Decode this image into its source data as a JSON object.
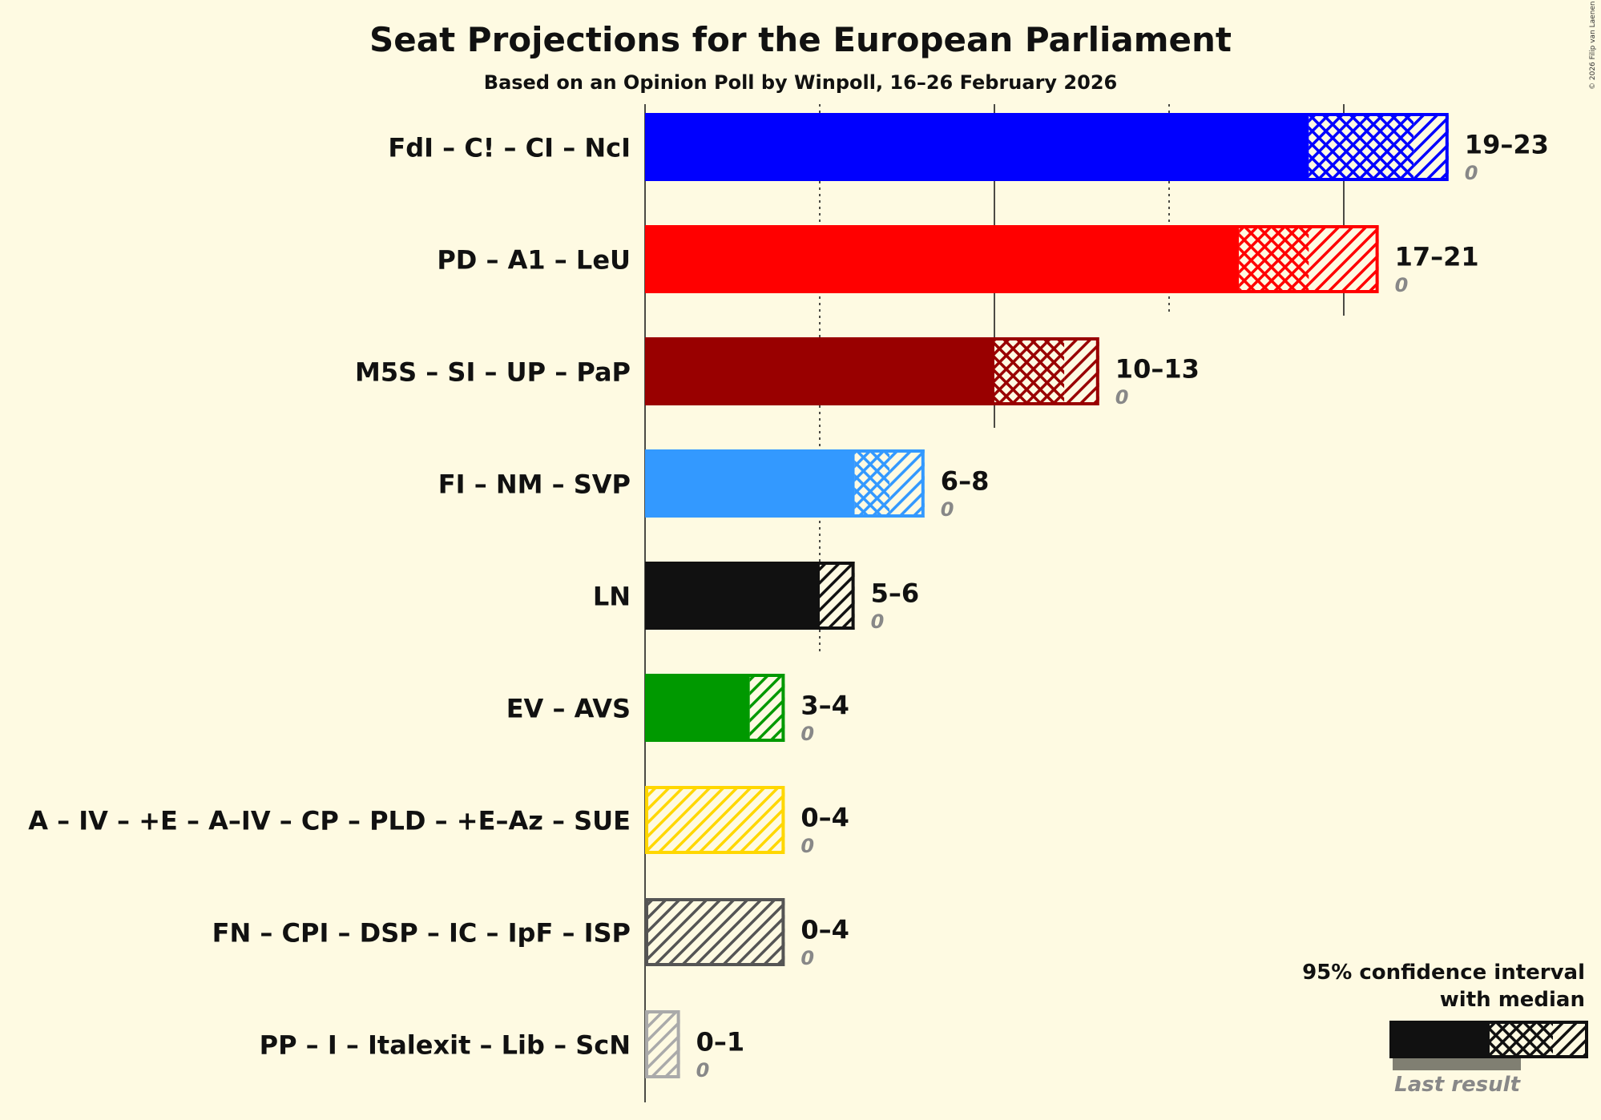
{
  "copyright": "© 2026 Filip van Laenen",
  "chart_data": {
    "type": "bar",
    "title": "Seat Projections for the European Parliament",
    "subtitle": "Based on an Opinion Poll by Winpoll, 16–26 February 2026",
    "xlabel": "",
    "ylabel": "",
    "xlim": [
      0,
      23
    ],
    "gridlines": {
      "solid": [
        0,
        10,
        20
      ],
      "dotted": [
        5,
        15
      ]
    },
    "legend": {
      "position": "bottom-right",
      "line1": "95% confidence interval",
      "line2": "with median",
      "last_result_label": "Last result"
    },
    "series": [
      {
        "name": "FdI – C! – CI – NcI",
        "low": 19,
        "median": 22,
        "high": 23,
        "range_label": "19–23",
        "last_result": "0",
        "color": "#0000FF"
      },
      {
        "name": "PD – A1 – LeU",
        "low": 17,
        "median": 19,
        "high": 21,
        "range_label": "17–21",
        "last_result": "0",
        "color": "#FF0000"
      },
      {
        "name": "M5S – SI – UP – PaP",
        "low": 10,
        "median": 12,
        "high": 13,
        "range_label": "10–13",
        "last_result": "0",
        "color": "#990000"
      },
      {
        "name": "FI – NM – SVP",
        "low": 6,
        "median": 7,
        "high": 8,
        "range_label": "6–8",
        "last_result": "0",
        "color": "#3399FF"
      },
      {
        "name": "LN",
        "low": 5,
        "median": 5,
        "high": 6,
        "range_label": "5–6",
        "last_result": "0",
        "color": "#111111"
      },
      {
        "name": "EV – AVS",
        "low": 3,
        "median": 3,
        "high": 4,
        "range_label": "3–4",
        "last_result": "0",
        "color": "#009900"
      },
      {
        "name": "A – IV – +E – A–IV – CP – PLD – +E–Az – SUE",
        "low": 0,
        "median": 0,
        "high": 4,
        "range_label": "0–4",
        "last_result": "0",
        "color": "#FFD700"
      },
      {
        "name": "FN – CPI – DSP – IC – IpF – ISP",
        "low": 0,
        "median": 0,
        "high": 4,
        "range_label": "0–4",
        "last_result": "0",
        "color": "#555555"
      },
      {
        "name": "PP – I – Italexit – Lib – ScN",
        "low": 0,
        "median": 0,
        "high": 1,
        "range_label": "0–1",
        "last_result": "0",
        "color": "#AAAAAA"
      }
    ]
  }
}
